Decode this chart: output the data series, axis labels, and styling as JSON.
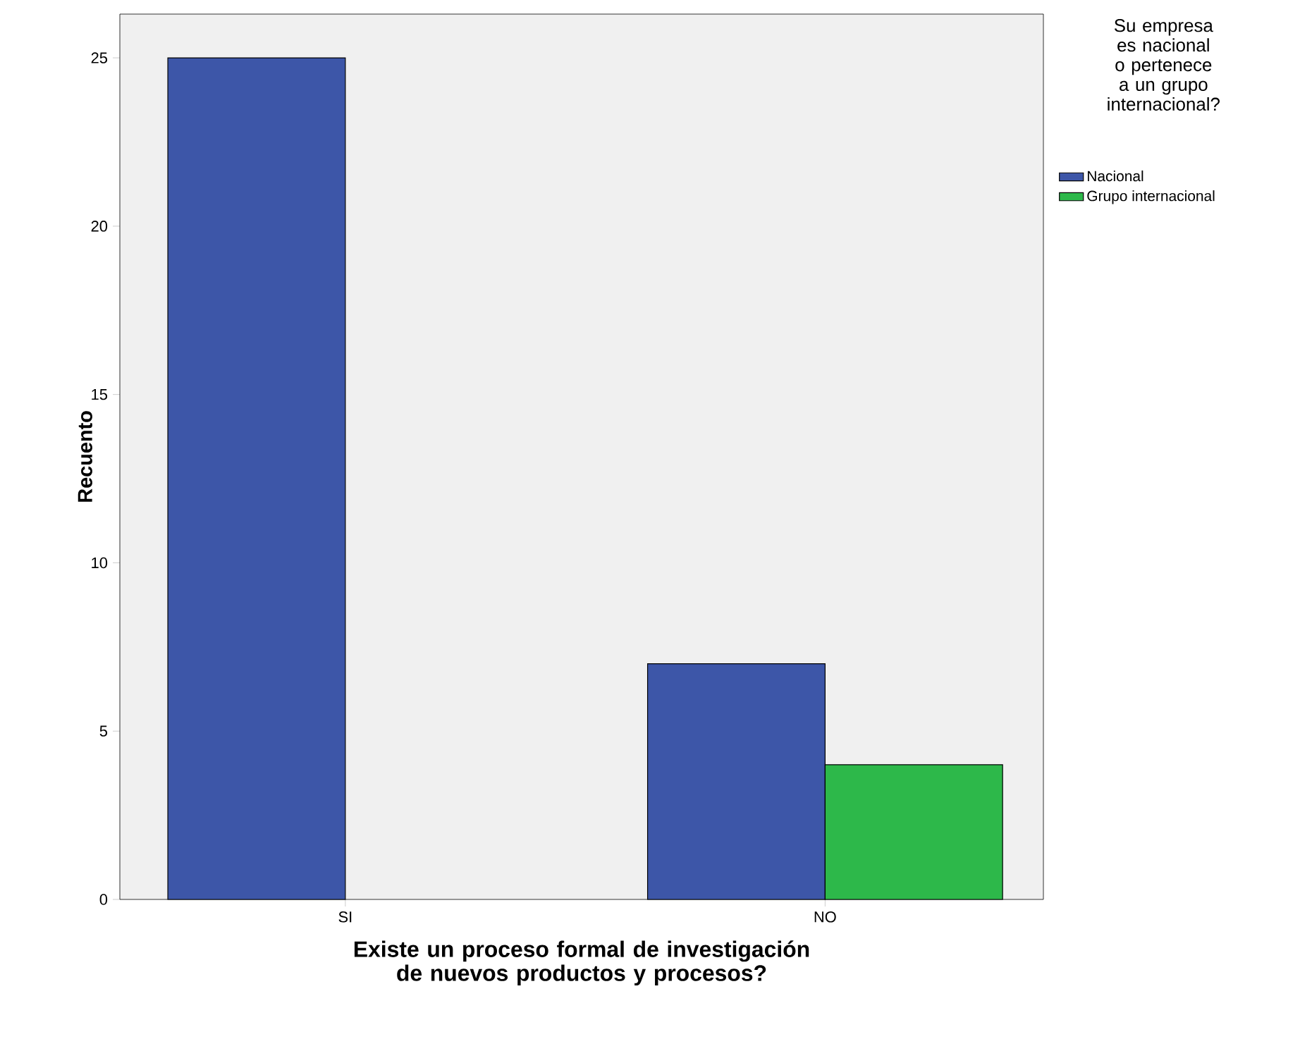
{
  "chart_data": {
    "type": "bar",
    "xlabel": "Existe un proceso formal de investigación de nuevos productos y procesos?",
    "ylabel": "Recuento",
    "legend_title": "Su empresa es nacional o pertenece a un grupo internacional?",
    "categories": [
      "SI",
      "NO"
    ],
    "series": [
      {
        "name": "Nacional",
        "color": "#3d56a8",
        "values": [
          25,
          7
        ]
      },
      {
        "name": "Grupo internacional",
        "color": "#2db84a",
        "values": [
          null,
          4
        ]
      }
    ],
    "ylim": [
      0,
      26.3
    ],
    "yticks": [
      0,
      5,
      10,
      15,
      20,
      25
    ],
    "legend": "top right"
  }
}
